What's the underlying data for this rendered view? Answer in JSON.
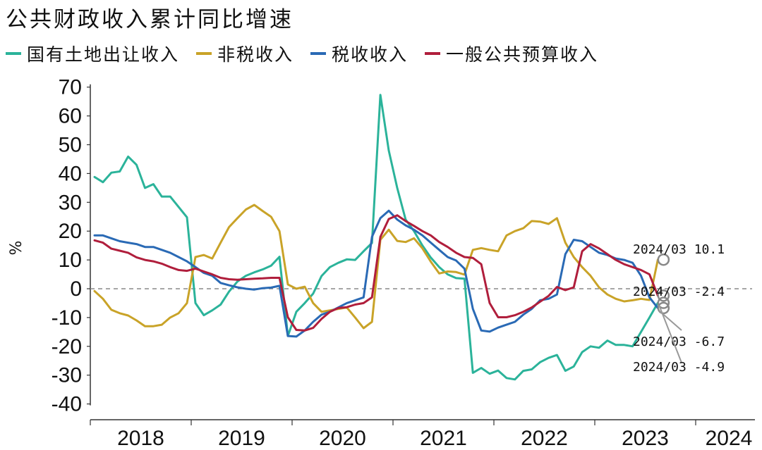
{
  "chart_data": {
    "type": "line",
    "title": "公共财政收入累计同比增速",
    "ylabel": "%",
    "ylim": [
      -40,
      70
    ],
    "yticks": [
      70,
      60,
      50,
      40,
      30,
      20,
      10,
      0,
      -10,
      -20,
      -30,
      -40
    ],
    "year_labels": [
      "2018",
      "2019",
      "2020",
      "2021",
      "2022",
      "2023",
      "2024"
    ],
    "x_start": "2018-01",
    "zero_line": "dashed",
    "series": [
      {
        "name": "国有土地出让收入",
        "color": "#2bb39a",
        "values": [
          38.8,
          37,
          40.3,
          40.7,
          45.9,
          43,
          35,
          36.3,
          32,
          32,
          28.4,
          24.8,
          -5,
          -9.2,
          -7.5,
          -5.5,
          -1,
          2.5,
          4.5,
          5.7,
          6.7,
          8,
          11.1,
          -16.4,
          -8,
          -5,
          -1.7,
          4.4,
          7.5,
          9,
          10.2,
          10,
          13,
          15.9,
          67.3,
          48,
          35,
          24,
          20,
          15,
          10.8,
          7.5,
          5,
          3.7,
          3.5,
          -29.2,
          -27.5,
          -29.5,
          -28.4,
          -31,
          -31.5,
          -28.5,
          -28,
          -25.5,
          -24,
          -23,
          -28.5,
          -27,
          -22,
          -20,
          -20.5,
          -18,
          -19.5,
          -19.5,
          -20,
          -15,
          -10,
          -4.9
        ]
      },
      {
        "name": "非税收入",
        "color": "#c9a328",
        "values": [
          -0.8,
          -3.5,
          -7.3,
          -8.5,
          -9.3,
          -11,
          -13,
          -13,
          -12.5,
          -10,
          -8.5,
          -5,
          11,
          11.7,
          10.5,
          16,
          21.4,
          24.5,
          27.5,
          29.1,
          27,
          25,
          20,
          1.5,
          0,
          0.7,
          -5,
          -8,
          -7.5,
          -7,
          -6.5,
          -10,
          -13.7,
          -11.5,
          17,
          20.5,
          16.6,
          16.2,
          17.5,
          14,
          9.4,
          5.3,
          6,
          5.8,
          4.9,
          13.5,
          14.1,
          13.5,
          13,
          18.5,
          20,
          21,
          23.5,
          23.3,
          22.5,
          24.5,
          16,
          11,
          7.5,
          4.5,
          0.5,
          -2,
          -3.5,
          -4.4,
          -4,
          -3.5,
          -3.9,
          10.1
        ]
      },
      {
        "name": "税收收入",
        "color": "#2a6ab5",
        "values": [
          18.5,
          18.5,
          17.5,
          16.5,
          16,
          15.5,
          14.5,
          14.5,
          13.5,
          12.5,
          11,
          9.5,
          7.5,
          5.5,
          4.5,
          2,
          1.2,
          0.5,
          0,
          -0.3,
          0.2,
          0.4,
          1,
          -16.4,
          -16.6,
          -14.5,
          -11.5,
          -9,
          -8,
          -6.5,
          -5,
          -4,
          -3,
          18,
          24.5,
          27.1,
          24,
          22,
          20.5,
          18.5,
          16,
          13.5,
          11,
          9.8,
          7,
          -7,
          -14.5,
          -14.9,
          -13.5,
          -12.5,
          -11.5,
          -9,
          -7,
          -4,
          -3.5,
          -2,
          12,
          17,
          16.5,
          14.5,
          12.5,
          11.7,
          10.5,
          10,
          9,
          4.5,
          -3,
          -6.7
        ]
      },
      {
        "name": "一般公共预算收入",
        "color": "#b01e3c",
        "values": [
          16.8,
          16,
          13.9,
          13.2,
          12.5,
          10.9,
          10,
          9.5,
          8.7,
          7.5,
          6.5,
          6.2,
          7,
          6,
          5,
          3.8,
          3.3,
          3.1,
          3.3,
          3.5,
          3.6,
          3.8,
          3.8,
          -9.9,
          -14.3,
          -14.5,
          -13.6,
          -10.5,
          -8,
          -6.7,
          -6.4,
          -5.5,
          -5,
          -3,
          18,
          24.2,
          25.5,
          23.5,
          21.8,
          20,
          18.5,
          16.2,
          14.5,
          12.5,
          11,
          10.7,
          8.5,
          -5,
          -9.9,
          -9.9,
          -9.2,
          -8,
          -6.5,
          -4.5,
          -2.5,
          0.6,
          -0.5,
          0.5,
          13,
          15.5,
          14,
          12,
          10,
          8.5,
          7.5,
          6.5,
          5,
          -2.4
        ]
      }
    ],
    "annotations": [
      {
        "label": "2024/03  10.1",
        "value": 10.1
      },
      {
        "label": "2024/03  -2.4",
        "value": -2.4
      },
      {
        "label": "2024/03  -6.7",
        "value": -6.7
      },
      {
        "label": "2024/03  -4.9",
        "value": -4.9
      }
    ]
  }
}
